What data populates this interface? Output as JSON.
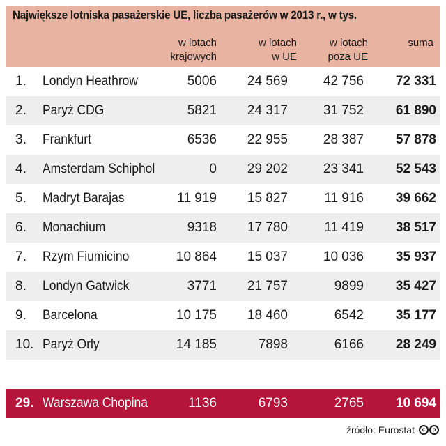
{
  "title": "Największe lotniska pasażerskie UE, liczba pasażerów w 2013 r., w tys.",
  "columns": [
    {
      "line1": "w lotach",
      "line2": "krajowych"
    },
    {
      "line1": "w lotach",
      "line2": "w UE"
    },
    {
      "line1": "w lotach",
      "line2": "poza UE"
    },
    {
      "line1": "",
      "line2": "suma"
    }
  ],
  "rows": [
    {
      "rank": "1.",
      "name": "Londyn Heathrow",
      "domestic": "5006",
      "eu": "24 569",
      "non_eu": "42 756",
      "total": "72 331"
    },
    {
      "rank": "2.",
      "name": "Paryż CDG",
      "domestic": "5821",
      "eu": "24 317",
      "non_eu": "31 752",
      "total": "61 890"
    },
    {
      "rank": "3.",
      "name": "Frankfurt",
      "domestic": "6536",
      "eu": "22 955",
      "non_eu": "28 387",
      "total": "57 878"
    },
    {
      "rank": "4.",
      "name": "Amsterdam Schiphol",
      "domestic": "0",
      "eu": "29 202",
      "non_eu": "23 341",
      "total": "52 543"
    },
    {
      "rank": "5.",
      "name": "Madryt Barajas",
      "domestic": "11 919",
      "eu": "15 827",
      "non_eu": "11 916",
      "total": "39 662"
    },
    {
      "rank": "6.",
      "name": "Monachium",
      "domestic": "9318",
      "eu": "17 780",
      "non_eu": "11 419",
      "total": "38 517"
    },
    {
      "rank": "7.",
      "name": "Rzym Fiumicino",
      "domestic": "10 864",
      "eu": "15 037",
      "non_eu": "10 036",
      "total": "35 937"
    },
    {
      "rank": "8.",
      "name": "Londyn Gatwick",
      "domestic": "3771",
      "eu": "21 757",
      "non_eu": "9899",
      "total": "35 427"
    },
    {
      "rank": "9.",
      "name": "Barcelona",
      "domestic": "10 175",
      "eu": "18 460",
      "non_eu": "6542",
      "total": "35 177"
    },
    {
      "rank": "10.",
      "name": "Paryż Orly",
      "domestic": "14 185",
      "eu": "7898",
      "non_eu": "6166",
      "total": "28 249"
    }
  ],
  "highlight": {
    "rank": "29.",
    "name": "Warszawa Chopina",
    "domestic": "1136",
    "eu": "6793",
    "non_eu": "2765",
    "total": "10 694"
  },
  "source": "źródło: Eurostat",
  "license_icon": "cc-by-icon",
  "colors": {
    "header_bg": "#e8b3a1",
    "alt_row": "#eeeeee",
    "highlight_bg": "#b5153a"
  }
}
